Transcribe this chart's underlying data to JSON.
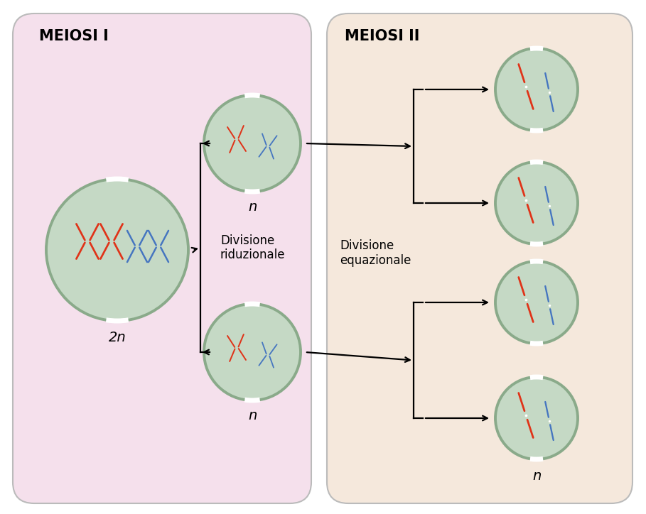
{
  "title_left": "MEIOSI I",
  "title_right": "MEIOSI II",
  "bg_left": "#f5e0ec",
  "bg_right": "#f5e8dc",
  "cell_bg": "#c5d9c5",
  "cell_border": "#8aaa8a",
  "red_color": "#e03318",
  "blue_color": "#4575c0",
  "label_2n": "2n",
  "label_n": "n",
  "div_riduz": "Divisione\nriduzionale",
  "div_equaz": "Divisione\nequazionale",
  "title_fontsize": 15,
  "label_fontsize": 14,
  "text_fontsize": 12
}
